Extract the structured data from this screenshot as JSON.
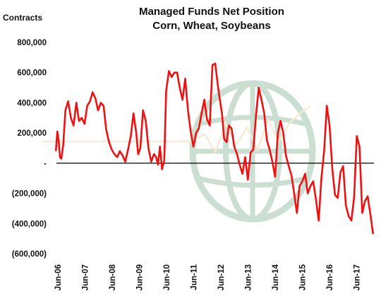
{
  "chart_data": {
    "type": "line",
    "title": "Managed Funds Net Position",
    "subtitle": "Corn, Wheat, Soybeans",
    "ylabel": "Contracts",
    "xlabel": "",
    "ylim": [
      -600000,
      800000
    ],
    "y_ticks": [
      800000,
      600000,
      400000,
      200000,
      0,
      -200000,
      -400000,
      -600000
    ],
    "y_tick_labels": [
      "800,000",
      "600,000",
      "400,000",
      "200,000",
      "-",
      "(200,000)",
      "(400,000)",
      "(600,000)"
    ],
    "x_tick_labels": [
      "Jun-06",
      "Jun-07",
      "Jun-08",
      "Jun-09",
      "Jun-10",
      "Jun-11",
      "Jun-12",
      "Jun-13",
      "Jun-14",
      "Jun-15",
      "Jun-16",
      "Jun-17"
    ],
    "grid": false,
    "watermark": "globe-logo",
    "colors": {
      "series": "#ee1111",
      "zero_line": "#000000"
    },
    "series": [
      {
        "name": "",
        "x": [
          2006.4,
          2006.45,
          2006.5,
          2006.55,
          2006.6,
          2006.67,
          2006.75,
          2006.85,
          2006.95,
          2007.05,
          2007.15,
          2007.25,
          2007.35,
          2007.45,
          2007.55,
          2007.65,
          2007.75,
          2007.85,
          2007.95,
          2008.05,
          2008.15,
          2008.25,
          2008.35,
          2008.45,
          2008.55,
          2008.65,
          2008.75,
          2008.85,
          2008.95,
          2009.05,
          2009.15,
          2009.25,
          2009.35,
          2009.42,
          2009.5,
          2009.6,
          2009.7,
          2009.8,
          2009.9,
          2010.0,
          2010.08,
          2010.15,
          2010.22,
          2010.3,
          2010.38,
          2010.45,
          2010.55,
          2010.65,
          2010.75,
          2010.85,
          2010.95,
          2011.05,
          2011.15,
          2011.25,
          2011.35,
          2011.45,
          2011.55,
          2011.65,
          2011.75,
          2011.85,
          2011.95,
          2012.05,
          2012.15,
          2012.25,
          2012.35,
          2012.42,
          2012.5,
          2012.58,
          2012.67,
          2012.75,
          2012.85,
          2012.95,
          2013.05,
          2013.15,
          2013.25,
          2013.35,
          2013.45,
          2013.55,
          2013.65,
          2013.75,
          2013.85,
          2013.95,
          2014.05,
          2014.15,
          2014.25,
          2014.35,
          2014.45,
          2014.55,
          2014.65,
          2014.75,
          2014.85,
          2014.95,
          2015.05,
          2015.15,
          2015.25,
          2015.35,
          2015.45,
          2015.55,
          2015.65,
          2015.75,
          2015.85,
          2015.95,
          2016.05,
          2016.15,
          2016.25,
          2016.35,
          2016.45,
          2016.55,
          2016.65,
          2016.75,
          2016.85,
          2016.95,
          2017.05,
          2017.15,
          2017.25,
          2017.35,
          2017.45,
          2017.55,
          2017.65,
          2017.75,
          2017.85,
          2017.95,
          2018.05
        ],
        "values": [
          80000,
          210000,
          150000,
          40000,
          30000,
          120000,
          350000,
          410000,
          300000,
          250000,
          400000,
          280000,
          300000,
          260000,
          380000,
          410000,
          470000,
          430000,
          350000,
          400000,
          380000,
          220000,
          140000,
          90000,
          60000,
          40000,
          80000,
          50000,
          10000,
          90000,
          180000,
          330000,
          200000,
          60000,
          100000,
          350000,
          280000,
          100000,
          10000,
          60000,
          40000,
          -10000,
          110000,
          -40000,
          20000,
          480000,
          610000,
          570000,
          600000,
          600000,
          500000,
          420000,
          560000,
          350000,
          210000,
          110000,
          200000,
          230000,
          330000,
          420000,
          290000,
          250000,
          650000,
          660000,
          510000,
          420000,
          330000,
          160000,
          140000,
          250000,
          230000,
          110000,
          60000,
          -10000,
          -70000,
          40000,
          -110000,
          70000,
          90000,
          320000,
          500000,
          420000,
          330000,
          150000,
          90000,
          10000,
          -90000,
          200000,
          280000,
          200000,
          50000,
          -20000,
          -80000,
          -200000,
          -330000,
          -150000,
          -120000,
          -70000,
          -200000,
          -150000,
          -120000,
          -240000,
          -380000,
          -100000,
          80000,
          380000,
          250000,
          -40000,
          -210000,
          -230000,
          -60000,
          -20000,
          -280000,
          -350000,
          -380000,
          -230000,
          180000,
          110000,
          -330000,
          -250000,
          -220000,
          -340000,
          -470000
        ]
      }
    ]
  }
}
